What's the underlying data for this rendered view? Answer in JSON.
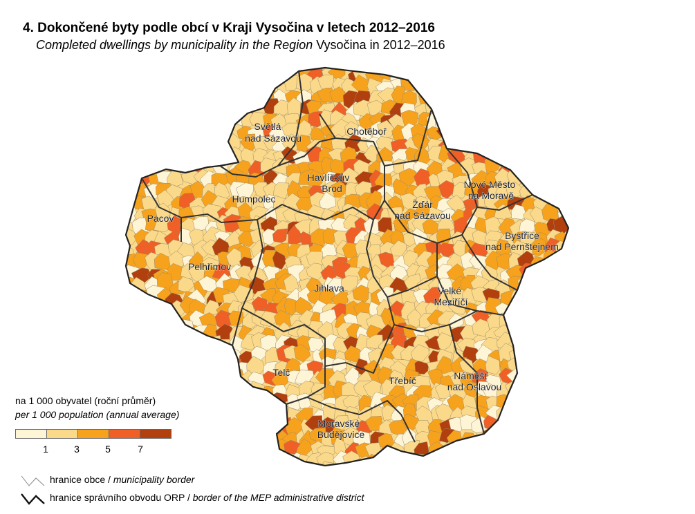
{
  "title": "4. Dokončené byty podle obcí v Kraji Vysočina v letech 2012–2016",
  "subtitle_italic": "Completed dwellings by municipality in the Region",
  "subtitle_plain": " Vysočina in 2012–2016",
  "legend": {
    "title": "na 1 000 obyvatel (roční průměr)",
    "subtitle": "per 1 000 population (annual average)",
    "colors": [
      "#fef4d6",
      "#fbd98a",
      "#f7a21c",
      "#ef5f26",
      "#b2400f"
    ],
    "ticks": [
      "1",
      "3",
      "5",
      "7"
    ],
    "municipality_label": "hranice obce / ",
    "municipality_label_italic": "municipality border",
    "district_label": "hranice správního obvodu ORP / ",
    "district_label_italic": "border of the MEP administrative district"
  },
  "cities": [
    {
      "id": "svetla",
      "lines": [
        "Světlá",
        "nad Sázavou"
      ]
    },
    {
      "id": "chotebor",
      "lines": [
        "Chotěboř"
      ]
    },
    {
      "id": "havlickuv",
      "lines": [
        "Havlíčkův",
        "Brod"
      ]
    },
    {
      "id": "nove-mesto",
      "lines": [
        "Nové Město",
        "na Moravě"
      ]
    },
    {
      "id": "zdar",
      "lines": [
        "Žďár",
        "nad Sázavou"
      ]
    },
    {
      "id": "humpolec",
      "lines": [
        "Humpolec"
      ]
    },
    {
      "id": "pacov",
      "lines": [
        "Pacov"
      ]
    },
    {
      "id": "bystrice",
      "lines": [
        "Bystřice",
        "nad Pernštejnem"
      ]
    },
    {
      "id": "pelhrimov",
      "lines": [
        "Pelhřimov"
      ]
    },
    {
      "id": "jihlava",
      "lines": [
        "Jihlava"
      ]
    },
    {
      "id": "velke-mezirici",
      "lines": [
        "Velké",
        "Meziříčí"
      ]
    },
    {
      "id": "telc",
      "lines": [
        "Telč"
      ]
    },
    {
      "id": "trebic",
      "lines": [
        "Třebíč"
      ]
    },
    {
      "id": "namest",
      "lines": [
        "Náměšť",
        "nad Oslavou"
      ]
    },
    {
      "id": "moravske",
      "lines": [
        "Moravské",
        "Budějovice"
      ]
    }
  ]
}
